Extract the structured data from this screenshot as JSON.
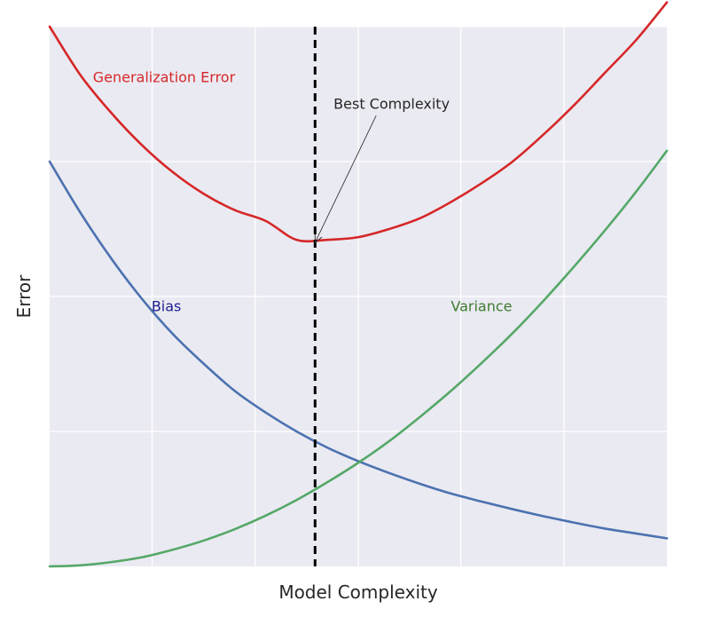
{
  "chart_data": {
    "type": "line",
    "title": "",
    "xlabel": "Model Complexity",
    "ylabel": "Error",
    "xlim": [
      0,
      1
    ],
    "ylim": [
      0,
      1
    ],
    "grid": true,
    "x_ticks_labeled": false,
    "y_ticks_labeled": false,
    "x_grid_values": [
      0.166,
      0.333,
      0.5,
      0.666,
      0.833
    ],
    "y_grid_values": [
      0.25,
      0.5,
      0.75,
      1.0
    ],
    "series": [
      {
        "name": "Bias",
        "color": "#4c72b0",
        "x": [
          0.0,
          0.05,
          0.1,
          0.15,
          0.2,
          0.25,
          0.3,
          0.35,
          0.4,
          0.45,
          0.5,
          0.55,
          0.6,
          0.65,
          0.7,
          0.75,
          0.8,
          0.85,
          0.9,
          0.95,
          1.0
        ],
        "values": [
          0.75,
          0.655,
          0.57,
          0.495,
          0.43,
          0.375,
          0.325,
          0.285,
          0.25,
          0.22,
          0.195,
          0.173,
          0.153,
          0.135,
          0.12,
          0.106,
          0.093,
          0.081,
          0.07,
          0.061,
          0.052
        ]
      },
      {
        "name": "Variance",
        "color": "#55a868",
        "x": [
          0.0,
          0.05,
          0.1,
          0.15,
          0.2,
          0.25,
          0.3,
          0.35,
          0.4,
          0.45,
          0.5,
          0.55,
          0.6,
          0.65,
          0.7,
          0.75,
          0.8,
          0.85,
          0.9,
          0.95,
          1.0
        ],
        "values": [
          0.0,
          0.002,
          0.008,
          0.017,
          0.031,
          0.048,
          0.069,
          0.094,
          0.123,
          0.156,
          0.192,
          0.232,
          0.277,
          0.325,
          0.377,
          0.432,
          0.492,
          0.556,
          0.623,
          0.694,
          0.77
        ]
      },
      {
        "name": "Generalization Error",
        "color": "#d62728",
        "x": [
          0.0,
          0.05,
          0.1,
          0.15,
          0.2,
          0.25,
          0.3,
          0.35,
          0.4,
          0.45,
          0.5,
          0.55,
          0.6,
          0.65,
          0.7,
          0.75,
          0.8,
          0.85,
          0.9,
          0.95,
          1.0
        ],
        "values": [
          1.0,
          0.91,
          0.84,
          0.78,
          0.73,
          0.69,
          0.66,
          0.64,
          0.605,
          0.605,
          0.61,
          0.625,
          0.645,
          0.675,
          0.71,
          0.75,
          0.8,
          0.855,
          0.915,
          0.975,
          1.045
        ]
      }
    ],
    "vline": {
      "x": 0.43,
      "style": "dashed",
      "color": "#000000"
    },
    "annotations": [
      {
        "text": "Generalization Error",
        "x": 0.07,
        "y": 0.905,
        "color": "#d62728"
      },
      {
        "text": "Bias",
        "x": 0.165,
        "y": 0.48,
        "color": "#1f1f8f"
      },
      {
        "text": "Variance",
        "x": 0.65,
        "y": 0.48,
        "color": "#3d7c2f"
      },
      {
        "text": "Best Complexity",
        "x": 0.46,
        "y": 0.855,
        "color": "#262626",
        "arrow_to": {
          "x": 0.43,
          "y": 0.6
        }
      }
    ]
  }
}
